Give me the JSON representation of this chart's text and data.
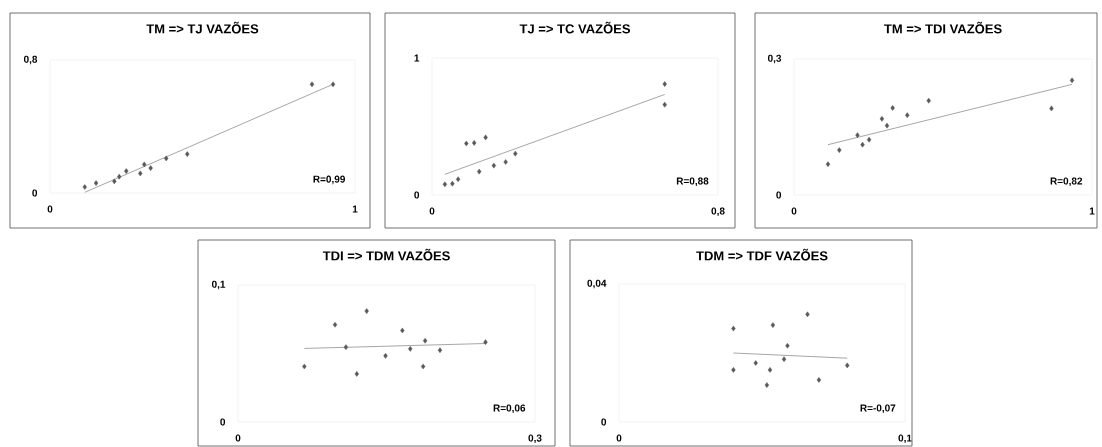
{
  "chart_data": [
    {
      "type": "scatter",
      "title": "TM => TJ VAZÕES",
      "grid": false,
      "xlim": [
        0,
        1
      ],
      "xticks": [
        0,
        1
      ],
      "ylim": [
        0,
        0.8
      ],
      "yticks": [
        0,
        {
          "value": 0.8,
          "label": "0,8"
        }
      ],
      "annotations": [
        "R=0,99"
      ],
      "series": [
        {
          "marker": "diamond",
          "color": "#595959",
          "x": [
            0.114,
            0.151,
            0.211,
            0.227,
            0.25,
            0.296,
            0.309,
            0.33,
            0.381,
            0.45,
            0.859,
            0.928
          ],
          "values": [
            0.036,
            0.06,
            0.07,
            0.098,
            0.132,
            0.118,
            0.172,
            0.15,
            0.208,
            0.234,
            0.654,
            0.654
          ]
        },
        {
          "type": "line",
          "color": "#808080",
          "x": [
            0.114,
            0.928
          ],
          "values": [
            0.004,
            0.654
          ]
        }
      ]
    },
    {
      "type": "scatter",
      "title": "TJ => TC VAZÕES",
      "grid": false,
      "xlim": [
        0,
        0.8
      ],
      "xticks": [
        0,
        {
          "value": 0.8,
          "label": "0,8"
        }
      ],
      "ylim": [
        0,
        1
      ],
      "yticks": [
        0,
        1
      ],
      "annotations": [
        "R=0,88"
      ],
      "series": [
        {
          "marker": "diamond",
          "color": "#595959",
          "x": [
            0.036,
            0.057,
            0.073,
            0.096,
            0.118,
            0.15,
            0.132,
            0.173,
            0.206,
            0.233,
            0.651,
            0.651
          ],
          "values": [
            0.078,
            0.083,
            0.115,
            0.376,
            0.38,
            0.42,
            0.171,
            0.215,
            0.241,
            0.302,
            0.81,
            0.659
          ]
        },
        {
          "type": "line",
          "color": "#808080",
          "x": [
            0.036,
            0.651
          ],
          "values": [
            0.151,
            0.734
          ]
        }
      ]
    },
    {
      "type": "scatter",
      "title": "TM => TDI VAZÕES",
      "grid": false,
      "xlim": [
        0,
        1
      ],
      "xticks": [
        0,
        1
      ],
      "ylim": [
        0,
        0.3
      ],
      "yticks": [
        0,
        {
          "value": 0.3,
          "label": "0,3"
        }
      ],
      "annotations": [
        "R=0,82"
      ],
      "series": [
        {
          "marker": "diamond",
          "color": "#595959",
          "x": [
            0.114,
            0.152,
            0.213,
            0.23,
            0.252,
            0.295,
            0.312,
            0.331,
            0.38,
            0.452,
            0.864,
            0.933
          ],
          "values": [
            0.068,
            0.099,
            0.132,
            0.111,
            0.122,
            0.168,
            0.153,
            0.192,
            0.176,
            0.208,
            0.191,
            0.253
          ]
        },
        {
          "type": "line",
          "color": "#808080",
          "x": [
            0.114,
            0.933
          ],
          "values": [
            0.111,
            0.244
          ]
        }
      ]
    },
    {
      "type": "scatter",
      "title": "TDI => TDM VAZÕES",
      "grid": false,
      "xlim": [
        0,
        0.3
      ],
      "xticks": [
        0,
        {
          "value": 0.3,
          "label": "0,3"
        }
      ],
      "ylim": [
        0,
        0.1
      ],
      "yticks": [
        0,
        {
          "value": 0.1,
          "label": "0,1"
        }
      ],
      "annotations": [
        "R=0,06"
      ],
      "series": [
        {
          "marker": "diamond",
          "color": "#595959",
          "x": [
            0.067,
            0.098,
            0.109,
            0.12,
            0.13,
            0.149,
            0.166,
            0.174,
            0.187,
            0.189,
            0.204,
            0.25
          ],
          "values": [
            0.0405,
            0.071,
            0.0546,
            0.0351,
            0.081,
            0.0483,
            0.0668,
            0.0534,
            0.0405,
            0.0593,
            0.0524,
            0.0583
          ]
        },
        {
          "type": "line",
          "color": "#808080",
          "x": [
            0.067,
            0.25
          ],
          "values": [
            0.0537,
            0.0573
          ]
        }
      ]
    },
    {
      "type": "scatter",
      "title": "TDM => TDF VAZÕES",
      "grid": false,
      "xlim": [
        0,
        0.1
      ],
      "xticks": [
        0,
        {
          "value": 0.1,
          "label": "0,1"
        }
      ],
      "ylim": [
        0,
        0.04
      ],
      "yticks": [
        0,
        {
          "value": 0.04,
          "label": "0,04"
        }
      ],
      "annotations": [
        "R=-0,07"
      ],
      "series": [
        {
          "marker": "diamond",
          "color": "#595959",
          "x": [
            0.04,
            0.04,
            0.0478,
            0.0528,
            0.0538,
            0.0517,
            0.0577,
            0.0589,
            0.0659,
            0.0699,
            0.0798
          ],
          "values": [
            0.0271,
            0.0151,
            0.0171,
            0.0151,
            0.0281,
            0.0107,
            0.0182,
            0.0221,
            0.0312,
            0.0122,
            0.0164
          ]
        },
        {
          "type": "line",
          "color": "#808080",
          "x": [
            0.04,
            0.0798
          ],
          "values": [
            0.02,
            0.0185
          ]
        }
      ]
    }
  ]
}
